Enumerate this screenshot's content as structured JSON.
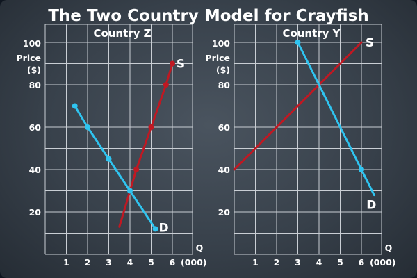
{
  "title": "The Two Country Model for Crayfish",
  "colors": {
    "supply": "#c01822",
    "demand": "#2fc4f0",
    "grid": "#c9ced4",
    "text": "#ffffff"
  },
  "chart_data": [
    {
      "type": "line",
      "title": "Country Z",
      "ylabel": "Price ($)",
      "xlabel": "Q",
      "xunit": "(000)",
      "xlim": [
        0,
        6.5
      ],
      "ylim": [
        0,
        110
      ],
      "x_ticks": [
        1,
        2,
        3,
        4,
        5,
        6
      ],
      "y_ticks": [
        20,
        40,
        60,
        80,
        100
      ],
      "grid": true,
      "series": [
        {
          "name": "S",
          "color": "#c01822",
          "points": [
            [
              3.5,
              13
            ],
            [
              4.3,
              40
            ],
            [
              5.0,
              60
            ],
            [
              5.7,
              80
            ],
            [
              6.0,
              90
            ]
          ],
          "markers": [
            [
              4.3,
              40
            ],
            [
              5.0,
              60
            ],
            [
              5.7,
              80
            ],
            [
              6.0,
              90
            ]
          ]
        },
        {
          "name": "D",
          "color": "#2fc4f0",
          "points": [
            [
              1.4,
              70
            ],
            [
              2.0,
              60
            ],
            [
              3.0,
              45
            ],
            [
              4.0,
              30
            ],
            [
              5.2,
              12
            ]
          ],
          "markers": [
            [
              1.4,
              70
            ],
            [
              2.0,
              60
            ],
            [
              3.0,
              45
            ],
            [
              4.0,
              30
            ],
            [
              5.2,
              12
            ]
          ]
        }
      ]
    },
    {
      "type": "line",
      "title": "Country Y",
      "ylabel": "Price ($)",
      "xlabel": "Q",
      "xunit": "(000)",
      "xlim": [
        0,
        6.5
      ],
      "ylim": [
        0,
        110
      ],
      "x_ticks": [
        1,
        2,
        3,
        4,
        5,
        6
      ],
      "y_ticks": [
        20,
        40,
        60,
        80,
        100
      ],
      "grid": true,
      "series": [
        {
          "name": "S",
          "color": "#c01822",
          "points": [
            [
              0,
              40
            ],
            [
              4,
              80
            ],
            [
              6,
              100
            ]
          ],
          "markers": []
        },
        {
          "name": "D",
          "color": "#2fc4f0",
          "points": [
            [
              3,
              100
            ],
            [
              4,
              80
            ],
            [
              6,
              40
            ],
            [
              6.6,
              28
            ]
          ],
          "markers": [
            [
              3,
              100
            ],
            [
              6,
              40
            ]
          ]
        }
      ]
    }
  ]
}
